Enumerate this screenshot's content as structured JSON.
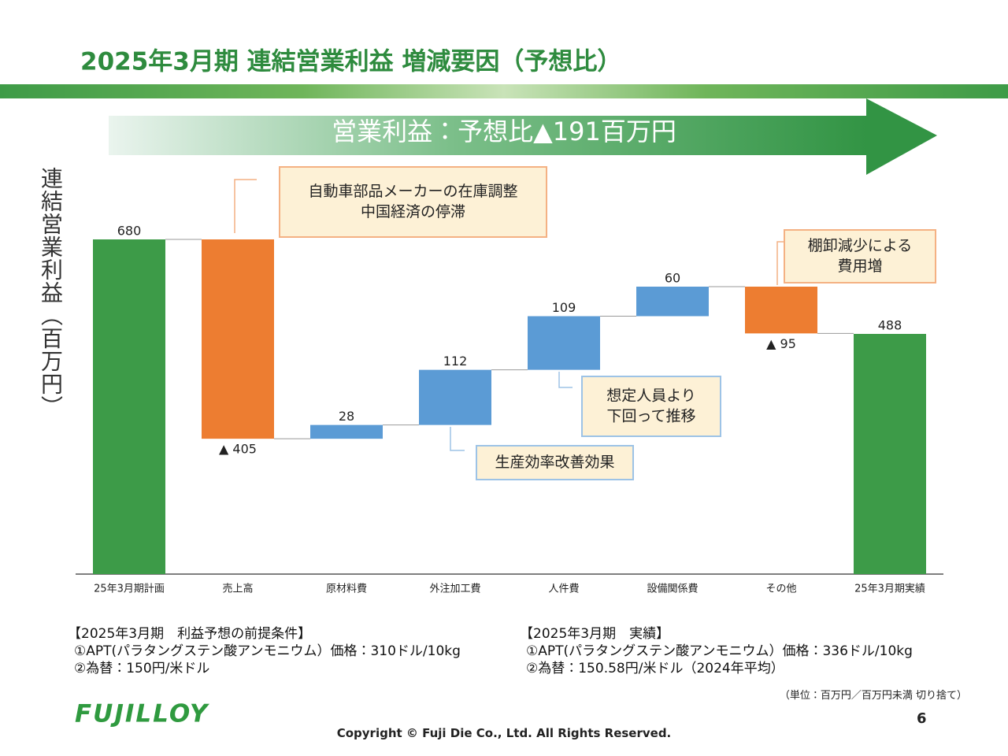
{
  "header": {
    "title": "2025年3月期 連結営業利益 増減要因（予想比）",
    "banner": "営業利益：予想比▲191百万円"
  },
  "chart_data": {
    "type": "waterfall",
    "y_label": "連結営業利益（百万円）",
    "categories": [
      "25年3月期計画",
      "売上高",
      "原材料費",
      "外注加工費",
      "人件費",
      "設備関係費",
      "その他",
      "25年3月期実績"
    ],
    "values": [
      680,
      -405,
      28,
      112,
      109,
      60,
      -95,
      488
    ],
    "value_labels": [
      "680",
      "▲ 405",
      "28",
      "112",
      "109",
      "60",
      "▲ 95",
      "488"
    ],
    "colors": [
      "#3d9b48",
      "#ed7d31",
      "#5b9bd5",
      "#5b9bd5",
      "#5b9bd5",
      "#5b9bd5",
      "#ed7d31",
      "#3d9b48"
    ],
    "callouts": [
      {
        "lines": [
          "自動車部品メーカーの在庫調整",
          "中国経済の停滞"
        ],
        "color": "#f4b183"
      },
      {
        "lines": [
          "棚卸減少による",
          "費用増"
        ],
        "color": "#f4b183"
      },
      {
        "lines": [
          "想定人員より",
          "下回って推移"
        ],
        "color": "#9dc3e6"
      },
      {
        "lines": [
          "生産効率改善効果"
        ],
        "color": "#9dc3e6"
      }
    ]
  },
  "notes": {
    "left": {
      "heading": "【2025年3月期　利益予想の前提条件】",
      "lines": [
        "①APT(パラタングステン酸アンモニウム）価格：310ドル/10kg",
        "②為替：150円/米ドル"
      ]
    },
    "right": {
      "heading": "【2025年3月期　実績】",
      "lines": [
        "①APT(パラタングステン酸アンモニウム）価格：336ドル/10kg",
        "②為替：150.58円/米ドル（2024年平均）"
      ]
    },
    "unit": "（単位：百万円／百万円未満 切り捨て）"
  },
  "footer": {
    "logo": "FUJILLOY",
    "page": "6",
    "copyright": "Copyright © Fuji Die Co., Ltd. All Rights Reserved."
  }
}
